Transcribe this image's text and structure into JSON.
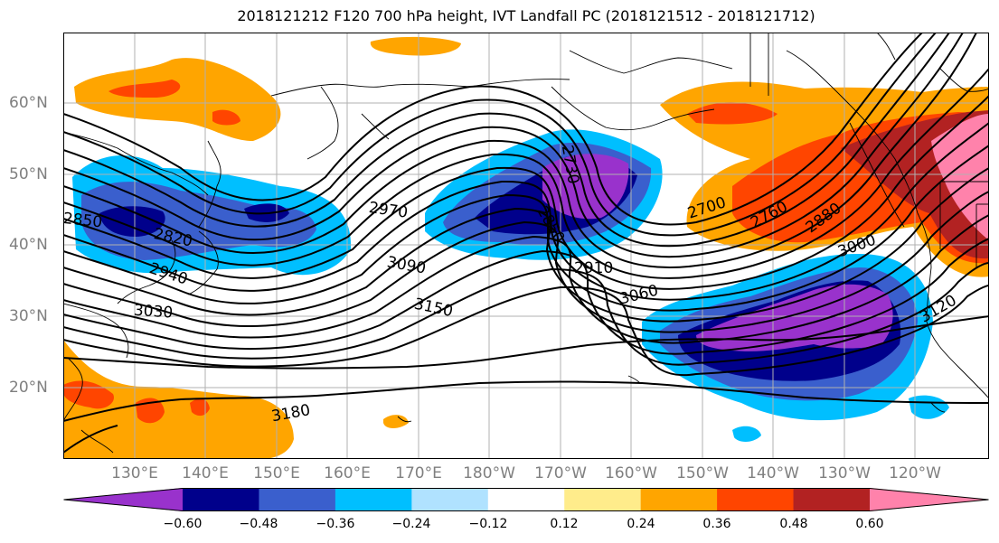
{
  "title": "2018121212 F120 700 hPa height, IVT Landfall PC (2018121512 - 2018121712)",
  "longitude_labels": [
    "130°E",
    "140°E",
    "150°E",
    "160°E",
    "170°E",
    "180°W",
    "170°W",
    "160°W",
    "150°W",
    "140°W",
    "130°W",
    "120°W"
  ],
  "latitude_labels": [
    "60°N",
    "50°N",
    "40°N",
    "30°N",
    "20°N"
  ],
  "contour_labels": [
    "2970",
    "2820",
    "2940",
    "3030",
    "3090",
    "3150",
    "3180",
    "2730",
    "2850",
    "2910",
    "3060",
    "2700",
    "2760",
    "2880",
    "3000",
    "3120",
    "2850"
  ],
  "colorbar": {
    "tick_labels": [
      "−0.60",
      "−0.48",
      "−0.36",
      "−0.24",
      "−0.12",
      "0.12",
      "0.24",
      "0.36",
      "0.48",
      "0.60"
    ],
    "colors": [
      "#9932CC",
      "#00008B",
      "#3A5FCD",
      "#00BFFF",
      "#B0E2FF",
      "#FFFFFF",
      "#FFEC8B",
      "#FFA500",
      "#FF4500",
      "#B22222",
      "#FF82AB"
    ]
  },
  "map": {
    "domain": "North Pacific",
    "field": "700 hPa height contours with IVT landfall PC shading"
  }
}
